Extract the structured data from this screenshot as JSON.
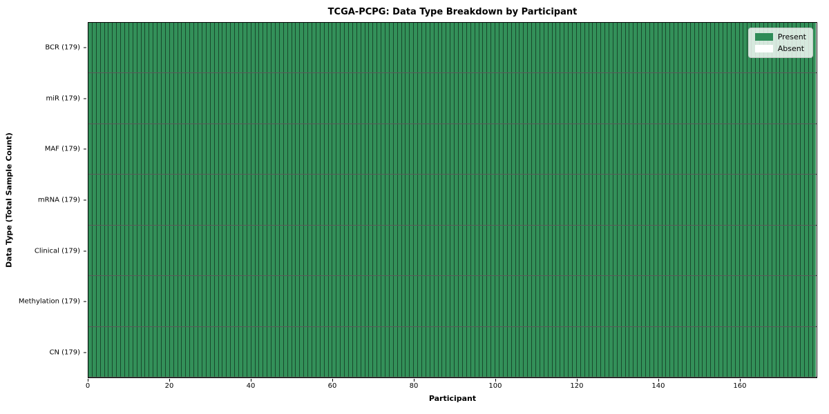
{
  "chart_data": {
    "type": "heatmap",
    "title": "TCGA-PCPG: Data Type Breakdown by Participant",
    "xlabel": "Participant",
    "ylabel": "Data Type (Total Sample Count)",
    "x_ticks": [
      0,
      20,
      40,
      60,
      80,
      100,
      120,
      140,
      160
    ],
    "x_range": [
      0,
      179
    ],
    "n_participants": 179,
    "grid": "cell-edges",
    "rows": [
      {
        "label": "BCR (179)",
        "data_type": "BCR",
        "total_samples": 179,
        "present": 179,
        "absent": 0
      },
      {
        "label": "miR (179)",
        "data_type": "miR",
        "total_samples": 179,
        "present": 179,
        "absent": 0
      },
      {
        "label": "MAF (179)",
        "data_type": "MAF",
        "total_samples": 179,
        "present": 179,
        "absent": 0
      },
      {
        "label": "mRNA (179)",
        "data_type": "mRNA",
        "total_samples": 179,
        "present": 179,
        "absent": 0
      },
      {
        "label": "Clinical (179)",
        "data_type": "Clinical",
        "total_samples": 179,
        "present": 179,
        "absent": 0
      },
      {
        "label": "Methylation (179)",
        "data_type": "Methylation",
        "total_samples": 179,
        "present": 179,
        "absent": 0
      },
      {
        "label": "CN (179)",
        "data_type": "CN",
        "total_samples": 179,
        "present": 179,
        "absent": 0
      }
    ],
    "legend": {
      "position": "upper right",
      "entries": [
        {
          "label": "Present",
          "color": "#2e8b57"
        },
        {
          "label": "Absent",
          "color": "#ffffff"
        }
      ]
    },
    "colors": {
      "present": "#339059",
      "absent": "#ffffff",
      "cell_edge": "rgba(0,0,0,0.50)",
      "row_edge": "rgba(0,0,0,0.65)",
      "axis_edge": "#000000",
      "legend_present_swatch": "#2e8b57",
      "legend_absent_swatch": "#ffffff"
    }
  }
}
